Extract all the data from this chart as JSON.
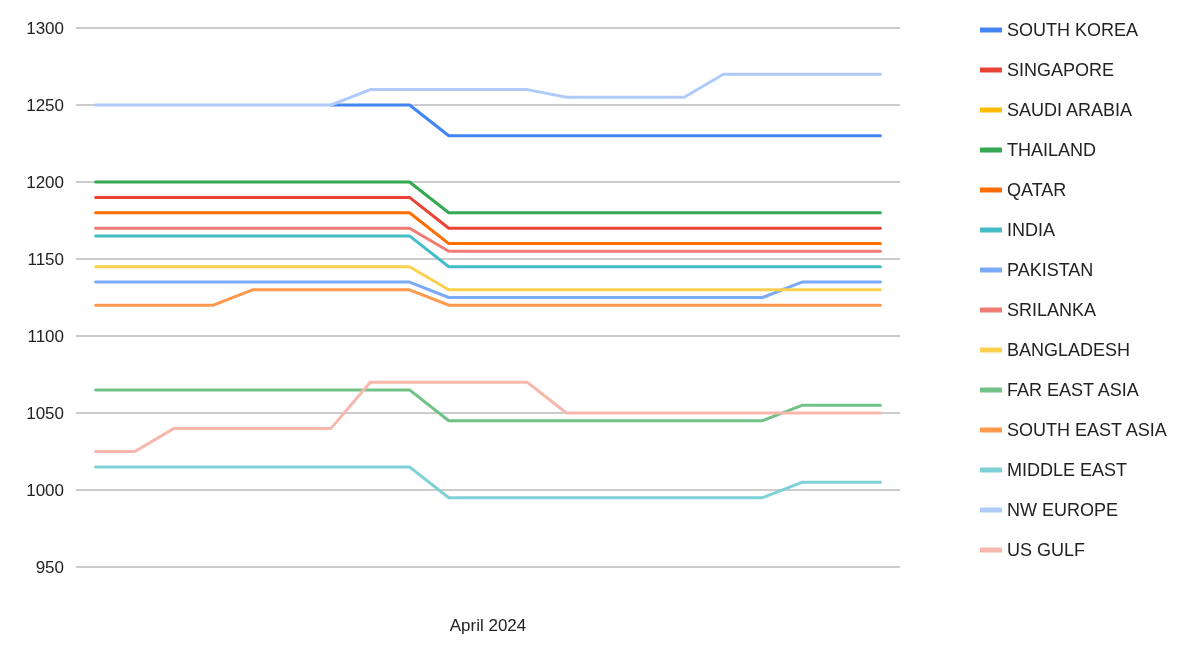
{
  "chart_data": {
    "type": "line",
    "xlabel": "April 2024",
    "categories": [
      null,
      null,
      null,
      null,
      null,
      null,
      null,
      null,
      null,
      null,
      null,
      null,
      null,
      null,
      null,
      null,
      null,
      null,
      null,
      null,
      null
    ],
    "ylim": [
      950,
      1300
    ],
    "yticks": [
      950,
      1000,
      1050,
      1100,
      1150,
      1200,
      1250,
      1300
    ],
    "grid": "y",
    "legend": "right",
    "marker": "none",
    "line_style": "solid",
    "series": [
      {
        "name": "SOUTH KOREA",
        "color": "#4285f4",
        "values": [
          null,
          null,
          null,
          null,
          null,
          null,
          1250,
          1250,
          1250,
          1230,
          1230,
          1230,
          1230,
          1230,
          1230,
          1230,
          1230,
          1230,
          1230,
          1230,
          1230
        ]
      },
      {
        "name": "SINGAPORE",
        "color": "#ea4335",
        "values": [
          1190,
          1190,
          1190,
          1190,
          1190,
          1190,
          1190,
          1190,
          1190,
          1170,
          1170,
          1170,
          1170,
          1170,
          1170,
          1170,
          1170,
          1170,
          1170,
          1170,
          1170
        ]
      },
      {
        "name": "SAUDI ARABIA",
        "color": "#fbbc04",
        "values": [
          null,
          null,
          null,
          null,
          null,
          null,
          null,
          null,
          null,
          null,
          null,
          null,
          null,
          null,
          null,
          null,
          null,
          null,
          null,
          null,
          null
        ]
      },
      {
        "name": "THAILAND",
        "color": "#34a853",
        "values": [
          1200,
          1200,
          1200,
          1200,
          1200,
          1200,
          1200,
          1200,
          1200,
          1180,
          1180,
          1180,
          1180,
          1180,
          1180,
          1180,
          1180,
          1180,
          1180,
          1180,
          1180
        ]
      },
      {
        "name": "QATAR",
        "color": "#ff6d01",
        "values": [
          1180,
          1180,
          1180,
          1180,
          1180,
          1180,
          1180,
          1180,
          1180,
          1160,
          1160,
          1160,
          1160,
          1160,
          1160,
          1160,
          1160,
          1160,
          1160,
          1160,
          1160
        ]
      },
      {
        "name": "INDIA",
        "color": "#46bdc6",
        "values": [
          1165,
          1165,
          1165,
          1165,
          1165,
          1165,
          1165,
          1165,
          1165,
          1145,
          1145,
          1145,
          1145,
          1145,
          1145,
          1145,
          1145,
          1145,
          1145,
          1145,
          1145
        ]
      },
      {
        "name": "PAKISTAN",
        "color": "#7baaf7",
        "values": [
          1135,
          1135,
          1135,
          1135,
          1135,
          1135,
          1135,
          1135,
          1135,
          1125,
          1125,
          1125,
          1125,
          1125,
          1125,
          1125,
          1125,
          1125,
          1135,
          1135,
          1135
        ]
      },
      {
        "name": "SRILANKA",
        "color": "#f07b72",
        "values": [
          1170,
          1170,
          1170,
          1170,
          1170,
          1170,
          1170,
          1170,
          1170,
          1155,
          1155,
          1155,
          1155,
          1155,
          1155,
          1155,
          1155,
          1155,
          1155,
          1155,
          1155
        ]
      },
      {
        "name": "BANGLADESH",
        "color": "#fcd04f",
        "values": [
          1145,
          1145,
          1145,
          1145,
          1145,
          1145,
          1145,
          1145,
          1145,
          1130,
          1130,
          1130,
          1130,
          1130,
          1130,
          1130,
          1130,
          1130,
          1130,
          1130,
          1130
        ]
      },
      {
        "name": "FAR EAST ASIA",
        "color": "#71c287",
        "values": [
          1065,
          1065,
          1065,
          1065,
          1065,
          1065,
          1065,
          1065,
          1065,
          1045,
          1045,
          1045,
          1045,
          1045,
          1045,
          1045,
          1045,
          1045,
          1055,
          1055,
          1055
        ]
      },
      {
        "name": "SOUTH EAST ASIA",
        "color": "#ff994d",
        "values": [
          1120,
          1120,
          1120,
          1120,
          1130,
          1130,
          1130,
          1130,
          1130,
          1120,
          1120,
          1120,
          1120,
          1120,
          1120,
          1120,
          1120,
          1120,
          1120,
          1120,
          1120
        ]
      },
      {
        "name": "MIDDLE EAST",
        "color": "#7ed1d7",
        "values": [
          1015,
          1015,
          1015,
          1015,
          1015,
          1015,
          1015,
          1015,
          1015,
          995,
          995,
          995,
          995,
          995,
          995,
          995,
          995,
          995,
          1005,
          1005,
          1005
        ]
      },
      {
        "name": "NW EUROPE",
        "color": "#aecbfa",
        "values": [
          1250,
          1250,
          1250,
          1250,
          1250,
          1250,
          1250,
          1260,
          1260,
          1260,
          1260,
          1260,
          1255,
          1255,
          1255,
          1255,
          1270,
          1270,
          1270,
          1270,
          1270
        ]
      },
      {
        "name": "US GULF",
        "color": "#f7b7ad",
        "values": [
          1025,
          1025,
          1040,
          1040,
          1040,
          1040,
          1040,
          1070,
          1070,
          1070,
          1070,
          1070,
          1050,
          1050,
          1050,
          1050,
          1050,
          1050,
          1050,
          1050,
          1050
        ]
      }
    ]
  }
}
